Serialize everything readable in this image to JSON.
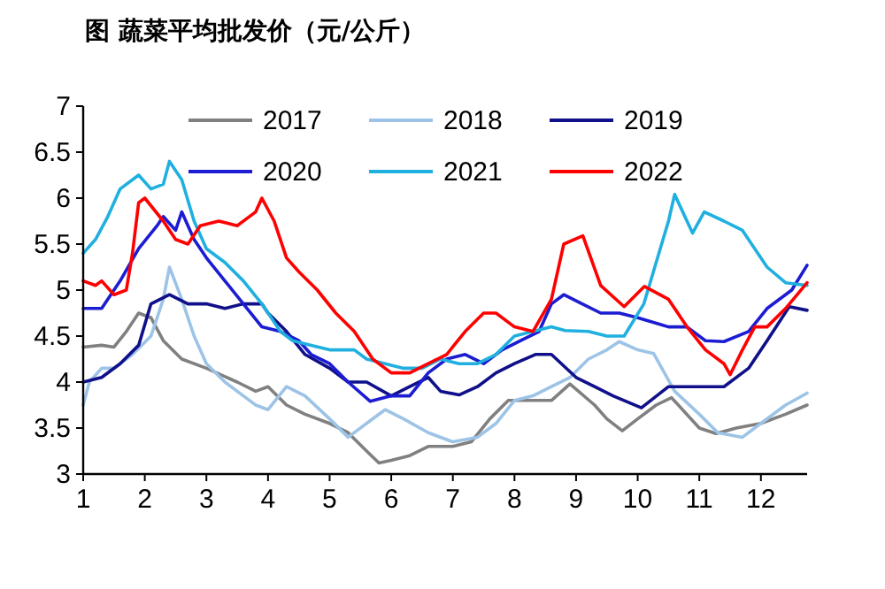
{
  "chart_data": {
    "type": "line",
    "title": "图  蔬菜平均批发价（元/公斤）",
    "xlim": [
      1,
      12.75
    ],
    "xticks": [
      1,
      2,
      3,
      4,
      5,
      6,
      7,
      8,
      9,
      10,
      11,
      12
    ],
    "ylim": [
      3,
      7
    ],
    "yticks": [
      3,
      3.5,
      4,
      4.5,
      5,
      5.5,
      6,
      6.5,
      7
    ],
    "legend": "top",
    "grid": false,
    "series": [
      {
        "name": "2017",
        "color": "#808080",
        "x": [
          1.0,
          1.3,
          1.5,
          1.7,
          1.9,
          2.1,
          2.3,
          2.6,
          3.0,
          3.5,
          3.8,
          4.0,
          4.3,
          4.6,
          5.0,
          5.3,
          5.6,
          5.8,
          6.0,
          6.3,
          6.6,
          7.0,
          7.3,
          7.6,
          7.9,
          8.2,
          8.6,
          8.9,
          9.3,
          9.5,
          9.75,
          10.0,
          10.3,
          10.55,
          11.0,
          11.27,
          11.6,
          12.0,
          12.4,
          12.75
        ],
        "values": [
          4.38,
          4.4,
          4.38,
          4.55,
          4.75,
          4.7,
          4.45,
          4.25,
          4.15,
          4.0,
          3.9,
          3.95,
          3.75,
          3.65,
          3.55,
          3.45,
          3.25,
          3.12,
          3.15,
          3.2,
          3.3,
          3.3,
          3.35,
          3.6,
          3.8,
          3.8,
          3.8,
          3.98,
          3.75,
          3.6,
          3.47,
          3.6,
          3.75,
          3.83,
          3.5,
          3.44,
          3.5,
          3.55,
          3.65,
          3.75
        ]
      },
      {
        "name": "2018",
        "color": "#9dc3e6",
        "x": [
          1.0,
          1.1,
          1.3,
          1.5,
          1.8,
          2.1,
          2.3,
          2.4,
          2.6,
          2.8,
          3.0,
          3.3,
          3.6,
          3.8,
          4.0,
          4.3,
          4.6,
          5.0,
          5.3,
          5.6,
          5.9,
          6.2,
          6.6,
          7.0,
          7.4,
          7.7,
          8.0,
          8.3,
          8.6,
          8.9,
          9.2,
          9.5,
          9.7,
          10.0,
          10.26,
          10.6,
          11.0,
          11.3,
          11.7,
          12.0,
          12.4,
          12.75
        ],
        "values": [
          3.75,
          4.0,
          4.15,
          4.15,
          4.3,
          4.5,
          4.9,
          5.25,
          4.9,
          4.5,
          4.2,
          4.0,
          3.85,
          3.75,
          3.7,
          3.95,
          3.85,
          3.6,
          3.4,
          3.55,
          3.7,
          3.6,
          3.45,
          3.35,
          3.4,
          3.55,
          3.8,
          3.85,
          3.95,
          4.05,
          4.25,
          4.35,
          4.44,
          4.35,
          4.31,
          3.9,
          3.65,
          3.45,
          3.4,
          3.55,
          3.75,
          3.88
        ]
      },
      {
        "name": "2019",
        "color": "#10108a",
        "x": [
          1.0,
          1.3,
          1.6,
          1.9,
          2.1,
          2.4,
          2.7,
          3.0,
          3.3,
          3.6,
          3.9,
          4.0,
          4.3,
          4.6,
          5.0,
          5.3,
          5.6,
          6.0,
          6.3,
          6.6,
          6.8,
          7.1,
          7.4,
          7.7,
          8.0,
          8.34,
          8.6,
          9.0,
          9.3,
          9.6,
          10.06,
          10.5,
          10.8,
          11.4,
          11.8,
          12.1,
          12.46,
          12.75
        ],
        "values": [
          4.0,
          4.05,
          4.2,
          4.4,
          4.85,
          4.95,
          4.85,
          4.85,
          4.8,
          4.85,
          4.85,
          4.75,
          4.55,
          4.3,
          4.15,
          4.0,
          4.0,
          3.85,
          3.95,
          4.05,
          3.9,
          3.86,
          3.95,
          4.1,
          4.2,
          4.3,
          4.3,
          4.05,
          3.95,
          3.85,
          3.72,
          3.95,
          3.95,
          3.95,
          4.15,
          4.45,
          4.82,
          4.78
        ]
      },
      {
        "name": "2020",
        "color": "#1c1cd2",
        "x": [
          1.0,
          1.3,
          1.6,
          1.9,
          2.2,
          2.3,
          2.5,
          2.6,
          2.8,
          3.0,
          3.3,
          3.6,
          3.9,
          4.2,
          4.5,
          4.7,
          5.0,
          5.3,
          5.66,
          6.0,
          6.3,
          6.6,
          6.9,
          7.2,
          7.5,
          7.8,
          8.1,
          8.4,
          8.6,
          8.8,
          9.1,
          9.4,
          9.7,
          10.0,
          10.35,
          10.5,
          10.8,
          11.1,
          11.4,
          11.8,
          12.1,
          12.5,
          12.75
        ],
        "values": [
          4.8,
          4.8,
          5.1,
          5.45,
          5.7,
          5.8,
          5.65,
          5.85,
          5.55,
          5.35,
          5.1,
          4.85,
          4.6,
          4.55,
          4.45,
          4.3,
          4.2,
          4.0,
          3.79,
          3.85,
          3.85,
          4.1,
          4.25,
          4.3,
          4.2,
          4.35,
          4.45,
          4.55,
          4.85,
          4.95,
          4.85,
          4.75,
          4.75,
          4.7,
          4.63,
          4.6,
          4.6,
          4.45,
          4.44,
          4.55,
          4.8,
          5.0,
          5.27
        ]
      },
      {
        "name": "2021",
        "color": "#1fb0e0",
        "x": [
          1.0,
          1.2,
          1.4,
          1.6,
          1.9,
          2.1,
          2.3,
          2.4,
          2.6,
          2.8,
          3.0,
          3.3,
          3.6,
          3.9,
          4.2,
          4.4,
          4.7,
          5.0,
          5.4,
          5.6,
          5.9,
          6.2,
          6.5,
          6.8,
          7.1,
          7.4,
          7.7,
          8.0,
          8.3,
          8.6,
          8.82,
          9.2,
          9.5,
          9.78,
          10.1,
          10.3,
          10.5,
          10.6,
          10.89,
          11.08,
          11.4,
          11.7,
          11.9,
          12.1,
          12.4,
          12.75
        ],
        "values": [
          5.4,
          5.55,
          5.8,
          6.1,
          6.25,
          6.1,
          6.15,
          6.4,
          6.2,
          5.75,
          5.45,
          5.3,
          5.1,
          4.85,
          4.55,
          4.45,
          4.4,
          4.35,
          4.35,
          4.25,
          4.2,
          4.15,
          4.15,
          4.25,
          4.2,
          4.2,
          4.3,
          4.5,
          4.55,
          4.6,
          4.56,
          4.55,
          4.5,
          4.5,
          4.85,
          5.3,
          5.75,
          6.04,
          5.62,
          5.85,
          5.75,
          5.65,
          5.45,
          5.25,
          5.08,
          5.05
        ]
      },
      {
        "name": "2022",
        "color": "#ff0000",
        "x": [
          1.0,
          1.2,
          1.3,
          1.5,
          1.7,
          1.8,
          1.9,
          2.0,
          2.3,
          2.5,
          2.7,
          2.9,
          3.2,
          3.5,
          3.8,
          3.9,
          4.1,
          4.3,
          4.5,
          4.8,
          5.1,
          5.4,
          5.7,
          6.0,
          6.3,
          6.6,
          6.9,
          7.2,
          7.5,
          7.7,
          8.0,
          8.3,
          8.6,
          8.8,
          9.11,
          9.4,
          9.78,
          10.11,
          10.5,
          10.8,
          11.1,
          11.4,
          11.5,
          11.7,
          11.9,
          12.1,
          12.4,
          12.75
        ],
        "values": [
          5.1,
          5.05,
          5.1,
          4.95,
          5.0,
          5.4,
          5.95,
          6.0,
          5.75,
          5.55,
          5.5,
          5.7,
          5.75,
          5.7,
          5.85,
          6.0,
          5.75,
          5.35,
          5.2,
          5.0,
          4.75,
          4.55,
          4.25,
          4.1,
          4.1,
          4.2,
          4.3,
          4.55,
          4.75,
          4.75,
          4.6,
          4.55,
          4.9,
          5.5,
          5.59,
          5.05,
          4.82,
          5.04,
          4.9,
          4.6,
          4.35,
          4.2,
          4.08,
          4.35,
          4.6,
          4.6,
          4.8,
          5.08
        ]
      }
    ]
  }
}
